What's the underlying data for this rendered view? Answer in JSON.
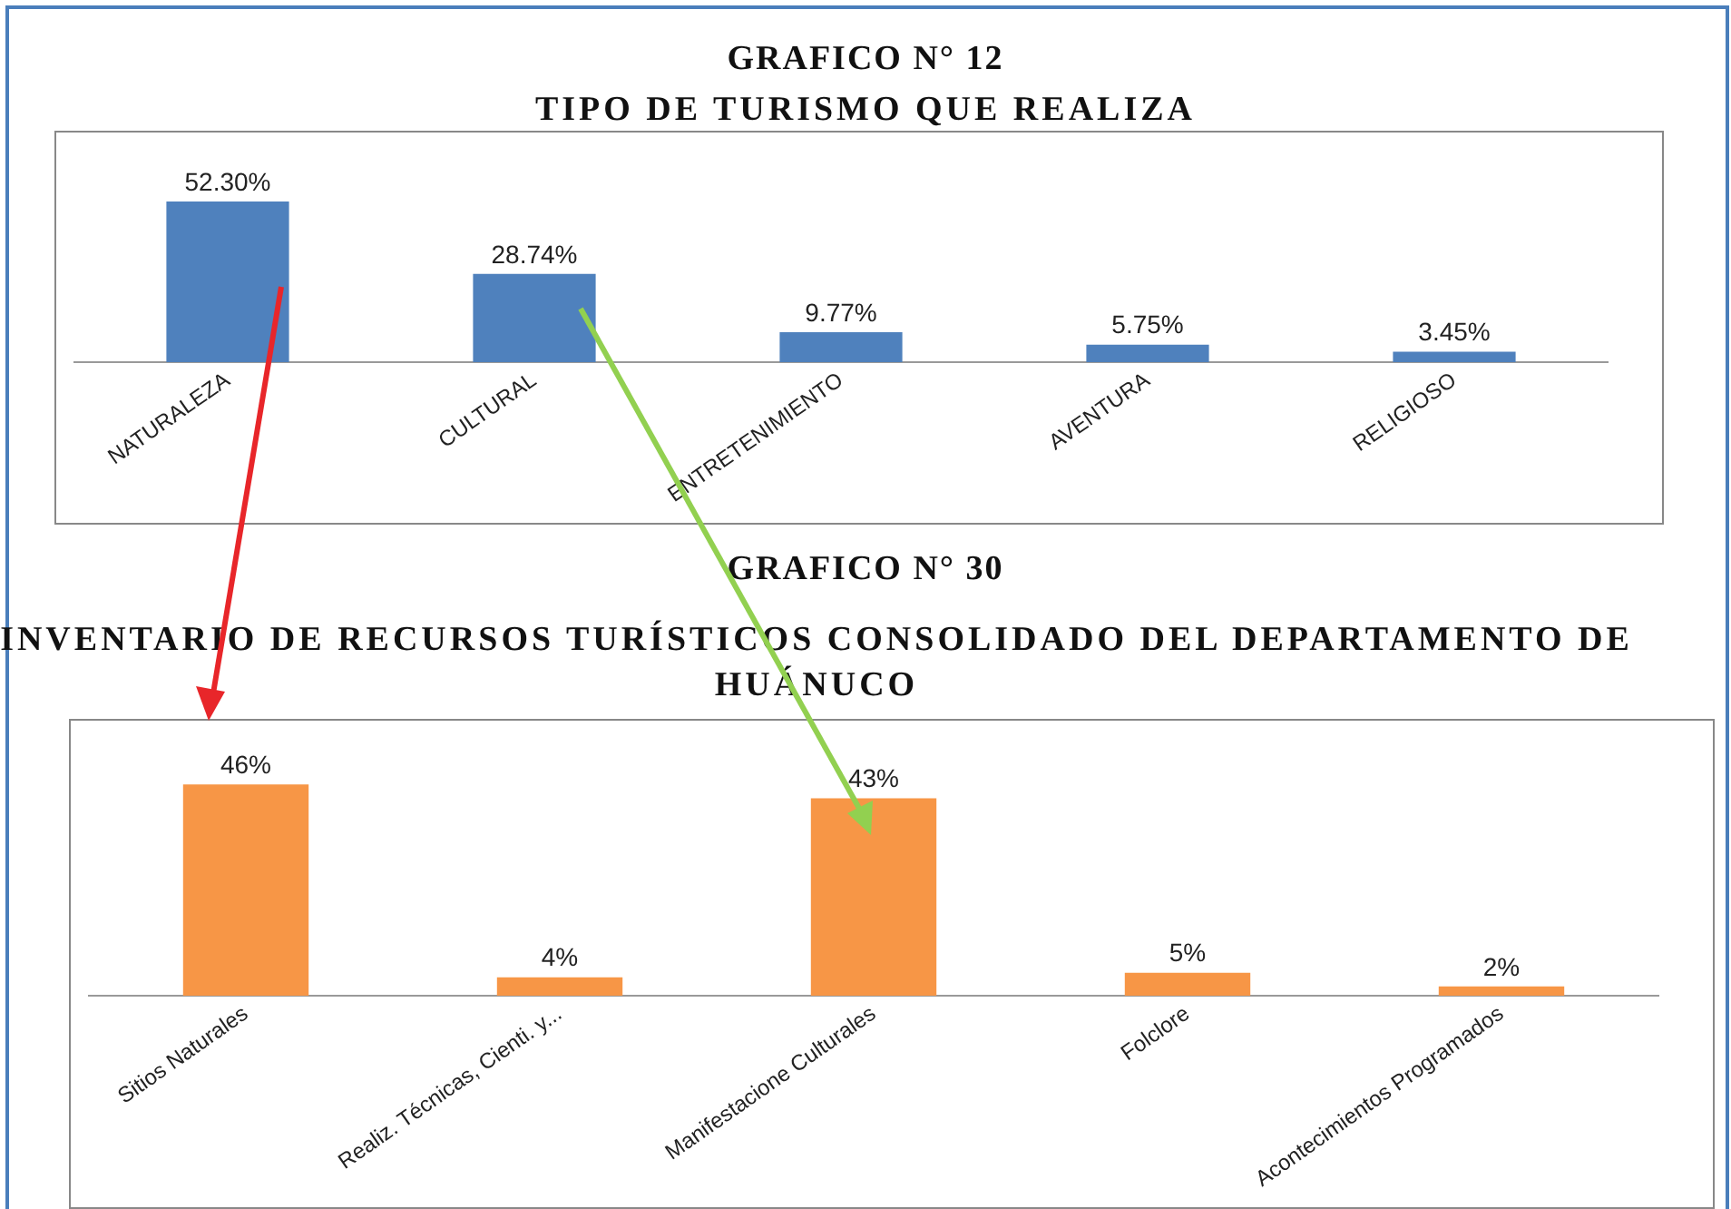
{
  "chart_data": [
    {
      "type": "bar",
      "title": "GRAFICO N° 12",
      "subtitle": "TIPO DE TURISMO QUE REALIZA",
      "categories": [
        "NATURALEZA",
        "CULTURAL",
        "ENTRETENIMIENTO",
        "AVENTURA",
        "RELIGIOSO"
      ],
      "values": [
        52.3,
        28.74,
        9.77,
        5.75,
        3.45
      ],
      "value_labels": [
        "52.30%",
        "28.74%",
        "9.77%",
        "5.75%",
        "3.45%"
      ],
      "color": "#4f81bd",
      "grid": false,
      "legend": false
    },
    {
      "type": "bar",
      "title": "GRAFICO N° 30",
      "subtitle": "INVENTARIO DE RECURSOS TURÍSTICOS CONSOLIDADO DEL DEPARTAMENTO DE HUÁNUCO",
      "categories": [
        "Sitios Naturales",
        "Realiz. Técnicas, Cienti. y...",
        "Manifestacione Culturales",
        "Folclore",
        "Acontecimientos Programados"
      ],
      "values": [
        46,
        4,
        43,
        5,
        2
      ],
      "value_labels": [
        "46%",
        "4%",
        "43%",
        "5%",
        "2%"
      ],
      "color": "#f79646",
      "grid": false,
      "legend": false
    }
  ]
}
